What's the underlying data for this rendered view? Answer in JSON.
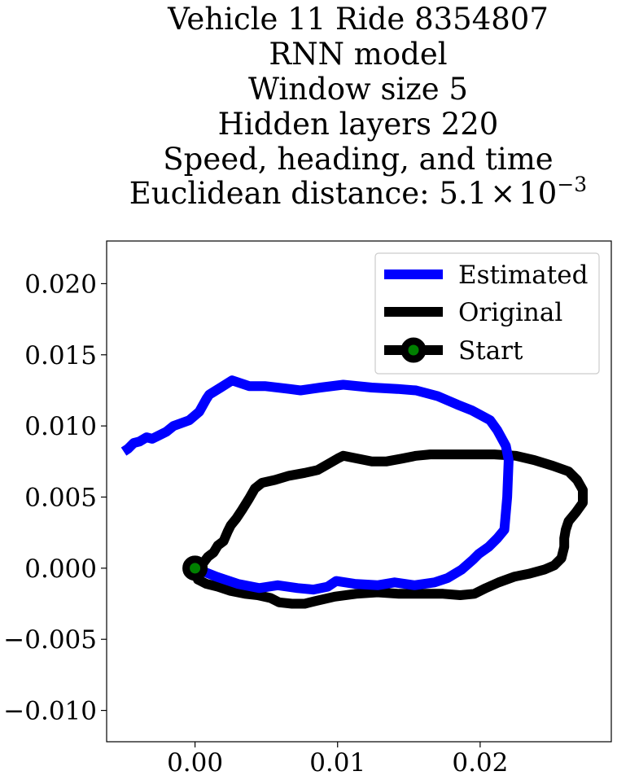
{
  "chart_data": {
    "type": "line",
    "title_lines": [
      "Vehicle 11 Ride 8354807",
      "RNN model",
      "Window size 5",
      "Hidden layers 220",
      "Speed, heading, and time"
    ],
    "title_metric_prefix": "Euclidean distance: ",
    "title_metric_mantissa": "5.1",
    "title_metric_times": "×",
    "title_metric_base": "10",
    "title_metric_exponent": "−3",
    "xlabel": "",
    "ylabel": "",
    "xlim": [
      -0.0062,
      0.0292
    ],
    "ylim": [
      -0.0122,
      0.023
    ],
    "xticks": [
      0.0,
      0.01,
      0.02
    ],
    "xtick_labels": [
      "0.00",
      "0.01",
      "0.02"
    ],
    "yticks": [
      0.02,
      0.015,
      0.01,
      0.005,
      0.0,
      -0.005,
      -0.01
    ],
    "ytick_labels": [
      "0.020",
      "0.015",
      "0.010",
      "0.005",
      "0.000",
      "−0.005",
      "−0.010"
    ],
    "grid": false,
    "legend_position": "top-right",
    "series": [
      {
        "name": "Estimated",
        "color": "#0000ff",
        "points": [
          [
            0.0,
            0.0
          ],
          [
            0.0015,
            -0.0006
          ],
          [
            0.003,
            -0.0011
          ],
          [
            0.0045,
            -0.0014
          ],
          [
            0.0058,
            -0.0012
          ],
          [
            0.0072,
            -0.0014
          ],
          [
            0.0083,
            -0.0015
          ],
          [
            0.0093,
            -0.0013
          ],
          [
            0.0099,
            -0.0009
          ],
          [
            0.0112,
            -0.0011
          ],
          [
            0.0128,
            -0.0012
          ],
          [
            0.014,
            -0.001
          ],
          [
            0.0154,
            -0.0012
          ],
          [
            0.0168,
            -0.001
          ],
          [
            0.0177,
            -0.0007
          ],
          [
            0.0187,
            -0.0001
          ],
          [
            0.0195,
            0.0006
          ],
          [
            0.0199,
            0.001
          ],
          [
            0.0206,
            0.0015
          ],
          [
            0.0212,
            0.0021
          ],
          [
            0.0217,
            0.0027
          ],
          [
            0.0219,
            0.005
          ],
          [
            0.022,
            0.0076
          ],
          [
            0.0218,
            0.0086
          ],
          [
            0.0212,
            0.0097
          ],
          [
            0.0207,
            0.0104
          ],
          [
            0.0194,
            0.0111
          ],
          [
            0.0184,
            0.0115
          ],
          [
            0.017,
            0.0121
          ],
          [
            0.0155,
            0.0125
          ],
          [
            0.0142,
            0.0126
          ],
          [
            0.0124,
            0.0127
          ],
          [
            0.0104,
            0.0129
          ],
          [
            0.0088,
            0.0127
          ],
          [
            0.0074,
            0.0125
          ],
          [
            0.0066,
            0.0126
          ],
          [
            0.0049,
            0.0128
          ],
          [
            0.0038,
            0.0128
          ],
          [
            0.0026,
            0.0132
          ],
          [
            0.0018,
            0.0127
          ],
          [
            0.001,
            0.0122
          ],
          [
            0.0008,
            0.0119
          ],
          [
            0.0003,
            0.011
          ],
          [
            -0.0004,
            0.0104
          ],
          [
            -0.0015,
            0.01
          ],
          [
            -0.002,
            0.0096
          ],
          [
            -0.0026,
            0.0093
          ],
          [
            -0.003,
            0.0091
          ],
          [
            -0.0034,
            0.0092
          ],
          [
            -0.0039,
            0.0089
          ],
          [
            -0.0043,
            0.0088
          ],
          [
            -0.0047,
            0.0084
          ],
          [
            -0.005,
            0.0082
          ]
        ]
      },
      {
        "name": "Original",
        "color": "#000000",
        "points": [
          [
            0.0,
            0.0
          ],
          [
            0.0006,
            0.0004
          ],
          [
            0.0009,
            0.0008
          ],
          [
            0.0013,
            0.0011
          ],
          [
            0.0016,
            0.0016
          ],
          [
            0.002,
            0.0019
          ],
          [
            0.0023,
            0.0026
          ],
          [
            0.0025,
            0.003
          ],
          [
            0.0029,
            0.0035
          ],
          [
            0.0033,
            0.0041
          ],
          [
            0.0038,
            0.0049
          ],
          [
            0.0042,
            0.0056
          ],
          [
            0.0047,
            0.006
          ],
          [
            0.0056,
            0.0062
          ],
          [
            0.0066,
            0.0065
          ],
          [
            0.0077,
            0.0067
          ],
          [
            0.0086,
            0.0069
          ],
          [
            0.0093,
            0.0073
          ],
          [
            0.01,
            0.0077
          ],
          [
            0.0104,
            0.0079
          ],
          [
            0.0114,
            0.0077
          ],
          [
            0.0124,
            0.0075
          ],
          [
            0.0134,
            0.0075
          ],
          [
            0.0145,
            0.0077
          ],
          [
            0.0155,
            0.0079
          ],
          [
            0.0165,
            0.008
          ],
          [
            0.0183,
            0.008
          ],
          [
            0.0195,
            0.008
          ],
          [
            0.021,
            0.008
          ],
          [
            0.0225,
            0.0079
          ],
          [
            0.0238,
            0.0076
          ],
          [
            0.0251,
            0.0072
          ],
          [
            0.0262,
            0.0068
          ],
          [
            0.0268,
            0.0062
          ],
          [
            0.0272,
            0.0055
          ],
          [
            0.0272,
            0.0046
          ],
          [
            0.0267,
            0.0039
          ],
          [
            0.0262,
            0.0033
          ],
          [
            0.026,
            0.0027
          ],
          [
            0.0259,
            0.0021
          ],
          [
            0.0259,
            0.0015
          ],
          [
            0.0257,
            0.0007
          ],
          [
            0.0252,
            0.0002
          ],
          [
            0.0245,
            -0.0001
          ],
          [
            0.0234,
            -0.0004
          ],
          [
            0.0224,
            -0.0006
          ],
          [
            0.0213,
            -0.001
          ],
          [
            0.0204,
            -0.0014
          ],
          [
            0.0196,
            -0.0018
          ],
          [
            0.0186,
            -0.0019
          ],
          [
            0.0174,
            -0.0018
          ],
          [
            0.0158,
            -0.0018
          ],
          [
            0.0143,
            -0.0018
          ],
          [
            0.0128,
            -0.0017
          ],
          [
            0.0113,
            -0.0018
          ],
          [
            0.0098,
            -0.002
          ],
          [
            0.0085,
            -0.0023
          ],
          [
            0.0077,
            -0.0025
          ],
          [
            0.0068,
            -0.0025
          ],
          [
            0.0059,
            -0.0024
          ],
          [
            0.0053,
            -0.0021
          ],
          [
            0.0044,
            -0.0019
          ],
          [
            0.0035,
            -0.0018
          ],
          [
            0.0025,
            -0.0016
          ],
          [
            0.0016,
            -0.0013
          ],
          [
            0.0008,
            -0.0011
          ],
          [
            0.0002,
            -0.0008
          ],
          [
            0.0,
            0.0
          ]
        ]
      }
    ],
    "start_marker": {
      "name": "Start",
      "x": 0.0,
      "y": 0.0,
      "edge_color": "#000000",
      "face_color": "#008000"
    }
  }
}
